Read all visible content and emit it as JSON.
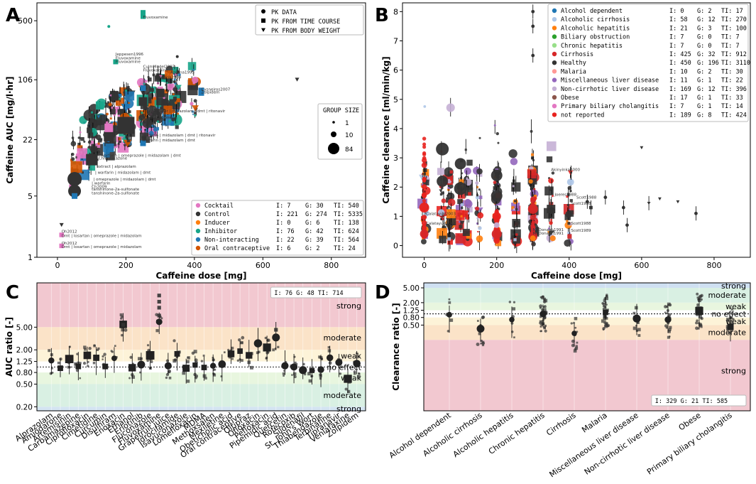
{
  "panels": [
    {
      "letter": "A"
    },
    {
      "letter": "B"
    },
    {
      "letter": "C"
    },
    {
      "letter": "D"
    }
  ],
  "chart_data": [
    {
      "id": "A",
      "type": "scatter",
      "xlabel": "Caffeine dose [mg]",
      "ylabel": "Caffeine AUC [mg/l·hr]",
      "xscale": "linear",
      "yscale": "log",
      "xlim": [
        -60,
        900
      ],
      "ylim": [
        1,
        800
      ],
      "xticks": [
        0,
        200,
        400,
        600,
        800
      ],
      "yticks": [
        {
          "v": 1,
          "label": "1"
        },
        {
          "v": 5,
          "label": "5"
        },
        {
          "v": 22,
          "label": "22"
        },
        {
          "v": 106,
          "label": "106"
        },
        {
          "v": 500,
          "label": "500"
        }
      ],
      "marker_legend": [
        {
          "marker": "circle",
          "label": "PK DATA"
        },
        {
          "marker": "square",
          "label": "PK FROM TIME COURSE"
        },
        {
          "marker": "triangle",
          "label": "PK FROM BODY WEIGHT"
        }
      ],
      "size_legend": {
        "title": "GROUP SIZE",
        "entries": [
          {
            "size": 1,
            "label": "1"
          },
          {
            "size": 10,
            "label": "10"
          },
          {
            "size": 84,
            "label": "84"
          }
        ]
      },
      "categories": [
        {
          "name": "Cocktail",
          "color": "#e377c2",
          "I": "7",
          "G": "30",
          "TI": "540"
        },
        {
          "name": "Control",
          "color": "#333333",
          "I": "221",
          "G": "274",
          "TI": "5335"
        },
        {
          "name": "Inducer",
          "color": "#ff7f0e",
          "I": "0",
          "G": "6",
          "TI": "138"
        },
        {
          "name": "Inhibitor",
          "color": "#17a589",
          "I": "76",
          "G": "42",
          "TI": "624"
        },
        {
          "name": "Non-interacting",
          "color": "#1f77b4",
          "I": "22",
          "G": "39",
          "TI": "564"
        },
        {
          "name": "Oral contraceptive",
          "color": "#d35400",
          "I": "6",
          "G": "2",
          "TI": "24"
        }
      ],
      "annotations": [
        {
          "x": 12,
          "y": 1.9,
          "text": "Oh2012"
        },
        {
          "x": 12,
          "y": 1.7,
          "text": "Dmt | losartan | omeprazole | midazolam"
        },
        {
          "x": 12,
          "y": 1.4,
          "text": "Oh2012"
        },
        {
          "x": 12,
          "y": 1.28,
          "text": "Dmt | losartan | omeprazole | midazolam"
        },
        {
          "x": 170,
          "y": 200,
          "text": "Jeppesen1996"
        },
        {
          "x": 170,
          "y": 182,
          "text": "Fluvoxamine"
        },
        {
          "x": 170,
          "y": 165,
          "text": "Fluvoxamine"
        },
        {
          "x": 250,
          "y": 145,
          "text": "CulmModel2007"
        },
        {
          "x": 250,
          "y": 132,
          "text": "Fluvoxamine"
        },
        {
          "x": 330,
          "y": 125,
          "text": "Azcona1995"
        },
        {
          "x": 285,
          "y": 110,
          "text": "Palwaria2009"
        },
        {
          "x": 420,
          "y": 80,
          "text": "Cysneiros2007"
        },
        {
          "x": 420,
          "y": 74,
          "text": "Zolpidem"
        },
        {
          "x": 260,
          "y": 45,
          "text": "| tipranavir | midazolam | dmt | ritonavir"
        },
        {
          "x": 250,
          "y": 38,
          "text": "Chlorzoxazone"
        },
        {
          "x": 240,
          "y": 24,
          "text": "| warfarin | midazolam | dmt | ritonavir"
        },
        {
          "x": 240,
          "y": 21,
          "text": "| warfarin | midazolam | dmt"
        },
        {
          "x": 120,
          "y": 14,
          "text": "| warfarin | omeprazole | midazolam | dmt"
        },
        {
          "x": 120,
          "y": 13,
          "text": "Chlorzoxazone"
        },
        {
          "x": 115,
          "y": 10.5,
          "text": "extract | alprazolam"
        },
        {
          "x": 110,
          "y": 9,
          "text": "| warfarin | midazolam | dmt"
        },
        {
          "x": 105,
          "y": 7.5,
          "text": "| omeprazole | midazolam | dmt"
        },
        {
          "x": 100,
          "y": 6.8,
          "text": "| warfarin"
        },
        {
          "x": 100,
          "y": 6.2,
          "text": "Ch2009"
        },
        {
          "x": 100,
          "y": 5.8,
          "text": "tanshinone-2a-sulfonate"
        },
        {
          "x": 100,
          "y": 5.2,
          "text": "tanshinone-2a-sulfonate"
        },
        {
          "x": 250,
          "y": 530,
          "text": "Fluvoxamine"
        }
      ]
    },
    {
      "id": "B",
      "type": "scatter",
      "xlabel": "Caffeine dose [mg]",
      "ylabel": "Caffeine clearance [ml/min/kg]",
      "xlim": [
        -60,
        900
      ],
      "ylim": [
        -0.4,
        8.3
      ],
      "xticks": [
        0,
        200,
        400,
        600,
        800
      ],
      "yticks": [
        0,
        1,
        2,
        3,
        4,
        5,
        6,
        7,
        8
      ],
      "categories": [
        {
          "name": "Alcohol dependent",
          "color": "#1f77b4",
          "I": "0",
          "G": "2",
          "TI": "17"
        },
        {
          "name": "Alcoholic cirrhosis",
          "color": "#aec7e8",
          "I": "58",
          "G": "12",
          "TI": "270"
        },
        {
          "name": "Alcoholic hepatitis",
          "color": "#ff7f0e",
          "I": "21",
          "G": "3",
          "TI": "100"
        },
        {
          "name": "Biliary obstruction",
          "color": "#2ca02c",
          "I": "7",
          "G": "0",
          "TI": "7"
        },
        {
          "name": "Chronic hepatitis",
          "color": "#98df8a",
          "I": "7",
          "G": "0",
          "TI": "7"
        },
        {
          "name": "Cirrhosis",
          "color": "#d62728",
          "I": "425",
          "G": "32",
          "TI": "912"
        },
        {
          "name": "Healthy",
          "color": "#333333",
          "I": "450",
          "G": "196",
          "TI": "3110"
        },
        {
          "name": "Malaria",
          "color": "#ff9896",
          "I": "10",
          "G": "2",
          "TI": "30"
        },
        {
          "name": "Miscellaneous liver disease",
          "color": "#9467bd",
          "I": "11",
          "G": "1",
          "TI": "22"
        },
        {
          "name": "Non-cirrhotic liver disease",
          "color": "#c5b0d5",
          "I": "169",
          "G": "12",
          "TI": "396"
        },
        {
          "name": "Obese",
          "color": "#8c564b",
          "I": "17",
          "G": "1",
          "TI": "33"
        },
        {
          "name": "Primary biliary cholangitis",
          "color": "#e377c2",
          "I": "7",
          "G": "1",
          "TI": "14"
        },
        {
          "name": "not reported",
          "color": "#e8231f",
          "I": "189",
          "G": "8",
          "TI": "424"
        }
      ],
      "annotations": [
        {
          "x": 5,
          "y": 0.72,
          "text": "Calatayud2003"
        },
        {
          "x": 5,
          "y": 1.05,
          "text": "Calatayud2003"
        },
        {
          "x": 350,
          "y": 2.55,
          "text": "Akinyinka2000"
        },
        {
          "x": 360,
          "y": 1.7,
          "text": "Joeres1988"
        },
        {
          "x": 420,
          "y": 1.6,
          "text": "Scott1988"
        },
        {
          "x": 405,
          "y": 1.4,
          "text": "Scott1988"
        },
        {
          "x": 300,
          "y": 0.5,
          "text": "McDonagh1991"
        },
        {
          "x": 300,
          "y": 0.38,
          "text": "McDonagh1991"
        },
        {
          "x": 405,
          "y": 0.72,
          "text": "Scott1988"
        },
        {
          "x": 405,
          "y": 0.48,
          "text": "Scott1989"
        }
      ]
    },
    {
      "id": "C",
      "type": "scatter",
      "ylabel": "AUC ratio [-]",
      "yscale": "log",
      "ylim": [
        0.17,
        30
      ],
      "yticks": [
        {
          "v": 0.2,
          "label": "0.20"
        },
        {
          "v": 0.5,
          "label": "0.50"
        },
        {
          "v": 0.8,
          "label": "0.80"
        },
        {
          "v": 1.25,
          "label": "1.25"
        },
        {
          "v": 2,
          "label": "2.00"
        },
        {
          "v": 5,
          "label": "5.00"
        }
      ],
      "stats": "I: 76  G: 48  TI: 714",
      "bands": [
        {
          "from": 5,
          "to": 30,
          "color": "#f2c8d0",
          "label": "strong",
          "at": 12
        },
        {
          "from": 2,
          "to": 5,
          "color": "#fbe3c8",
          "label": "moderate",
          "at": 3.3
        },
        {
          "from": 1.25,
          "to": 2,
          "color": "#fdf3d8",
          "label": "weak",
          "at": 1.58
        },
        {
          "from": 0.8,
          "to": 1.25,
          "color": "#ffffff",
          "label": "no effect",
          "at": 1.0
        },
        {
          "from": 0.5,
          "to": 0.8,
          "color": "#e8f6df",
          "label": "weak",
          "at": 0.65
        },
        {
          "from": 0.2,
          "to": 0.5,
          "color": "#d9f0e3",
          "label": "moderate",
          "at": 0.32
        },
        {
          "from": 0.17,
          "to": 0.2,
          "color": "#d4e4f2",
          "label": "strong",
          "at": 0.184
        }
      ],
      "categories": [
        "Alprazolam",
        "Amiodarone",
        "Artemisinin",
        "Carbamazepine",
        "Ciprofloxacin",
        "Cimetidine",
        "Curcumin",
        "Disulfiram",
        "Enoxacin",
        "Ethanol",
        "Erlotinib",
        "Fluconazole",
        "Fluvoxamine",
        "Grapefruit juice",
        "Idrocilamide",
        "Isavuconazole",
        "Lomefloxacin",
        "MDMA",
        "Methoxsalen",
        "Mexiletine",
        "Obeticholic acid",
        "Oral contraceptive",
        "Oltipraz",
        "Ofloxacin",
        "Pefloxacin",
        "Pipemidic acid",
        "Quercetin",
        "Rofecoxib",
        "Sildenafil",
        "St. John's Wort",
        "Thiabendazole",
        "Terbinafine",
        "Tipranavir",
        "Venlafaxine",
        "Zolpidem"
      ],
      "values": [
        1.3,
        0.95,
        1.38,
        1.02,
        1.6,
        1.45,
        1.02,
        1.42,
        5.6,
        0.97,
        1.1,
        1.6,
        6.2,
        1.05,
        1.7,
        0.95,
        1.08,
        0.98,
        1.05,
        1.12,
        1.7,
        1.9,
        1.6,
        2.6,
        2.2,
        3.3,
        1.05,
        1.0,
        0.88,
        0.87,
        0.9,
        1.45,
        1.2,
        0.62,
        1.15
      ]
    },
    {
      "id": "D",
      "type": "scatter",
      "ylabel": "Clearance ratio [-]",
      "yscale": "log",
      "ylim": [
        0.0025,
        6.8
      ],
      "yticks": [
        {
          "v": 0.5,
          "label": "0.50"
        },
        {
          "v": 0.8,
          "label": "0.80"
        },
        {
          "v": 1.25,
          "label": "1.25"
        },
        {
          "v": 2,
          "label": "2.00"
        },
        {
          "v": 5,
          "label": "5.00"
        }
      ],
      "stats": "I: 329  G: 21  TI: 585",
      "bands": [
        {
          "from": 5,
          "to": 6.8,
          "color": "#cfe0f2",
          "label": "strong",
          "at": 5.7
        },
        {
          "from": 2,
          "to": 5,
          "color": "#d9f0e3",
          "label": "moderate",
          "at": 3.2
        },
        {
          "from": 1.25,
          "to": 2,
          "color": "#e8f6df",
          "label": "weak",
          "at": 1.58
        },
        {
          "from": 0.8,
          "to": 1.25,
          "color": "#ffffff",
          "label": "no effect",
          "at": 1.0
        },
        {
          "from": 0.5,
          "to": 0.8,
          "color": "#fdf3d8",
          "label": "weak",
          "at": 0.64
        },
        {
          "from": 0.2,
          "to": 0.5,
          "color": "#fbe3c8",
          "label": "moderate",
          "at": 0.32
        },
        {
          "from": 0.0025,
          "to": 0.2,
          "color": "#f2c8d0",
          "label": "strong",
          "at": 0.03
        }
      ],
      "categories": [
        "Alcohol dependent",
        "Alcoholic cirrhosis",
        "Alcoholic hepatitis",
        "Chronic hepatitis",
        "Cirrhosis",
        "Malaria",
        "Miscellaneous liver disease",
        "Non-cirrhotic liver disease",
        "Obese",
        "Primary biliary cholangitis"
      ],
      "values": [
        0.95,
        0.4,
        0.7,
        1.0,
        0.3,
        1.1,
        0.75,
        0.7,
        1.2,
        0.45
      ]
    }
  ]
}
